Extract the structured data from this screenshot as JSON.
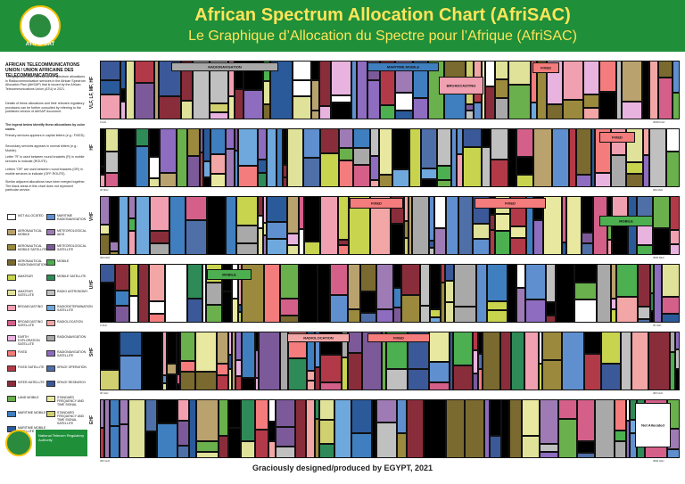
{
  "header": {
    "title_en": "African Spectrum Allocation Chart (AfriSAC)",
    "title_fr": "Le Graphique d’Allocation du Spectre pour l’Afrique (AfriSAC)",
    "logo_text": "ATU ★ UAT"
  },
  "sidebar": {
    "org_name": "AFRICAN TELECOMMUNICATIONS UNION / UNION AFRICAINE DES TELECOMMUNICATIONS",
    "intro": "This graphical chart represents the spectrum allocations in Radiocommunication services in the African Spectrum Allocation Plan (AfriSAP) that is issued by the African Telecommunications Union (ATU) in 2021.",
    "details": "Details of these allocations and their relevant regulatory provisions can be further consulted by referring to the published version of AfriSAP document.",
    "legend_intro": "The legend below identify these allocations by color codes.",
    "bullet_1": "Primary services appears in capital letters (e.g.: FIXED).",
    "bullet_2": "Secondary services appears in normal letters (e.g.: Mobile).",
    "bullet_3": "Letter \"R\" is used between round brackets (R) in mobile services to indicate (ROUTE).",
    "bullet_4": "Letters \"OR\" are used between round brackets (OR) in mobile services to indicate (OFF-ROUTE).",
    "bullet_5": "Similar adjacent allocations have been merged together. The black areas in this chart does not represent particular service."
  },
  "legend": [
    {
      "label": "NOT ALLOCATED",
      "color": "#ffffff"
    },
    {
      "label": "AERONAUTICAL MOBILE",
      "color": "#b9a26e"
    },
    {
      "label": "AERONAUTICAL MOBILE SATELLITE",
      "color": "#9b8a3d"
    },
    {
      "label": "AERONAUTICAL RADIONAVIGATION",
      "color": "#7a6a2f"
    },
    {
      "label": "AMATEUR",
      "color": "#c8d44e"
    },
    {
      "label": "AMATEUR SATELLITE",
      "color": "#e0e29a"
    },
    {
      "label": "BROADCASTING",
      "color": "#f0a0b0"
    },
    {
      "label": "BROADCASTING SATELLITE",
      "color": "#d4608a"
    },
    {
      "label": "EARTH EXPLORATION SATELLITE",
      "color": "#e9b3e0"
    },
    {
      "label": "FIXED",
      "color": "#f47c7c"
    },
    {
      "label": "FIXED SATELLITE",
      "color": "#b23a48"
    },
    {
      "label": "INTER-SATELLITE",
      "color": "#8a2d3b"
    },
    {
      "label": "LAND MOBILE",
      "color": "#6ab04c"
    },
    {
      "label": "MARITIME MOBILE",
      "color": "#3f7fbf"
    },
    {
      "label": "MARITIME MOBILE SATELLITE",
      "color": "#2a5a9a"
    },
    {
      "label": "MARITIME RADIONAVIGATION",
      "color": "#5f8fcf"
    },
    {
      "label": "METEOROLOGICAL AIDS",
      "color": "#9e7bb5"
    },
    {
      "label": "METEOROLOGICAL SATELLITE",
      "color": "#7c5a9a"
    },
    {
      "label": "MOBILE",
      "color": "#4caf50"
    },
    {
      "label": "MOBILE SATELLITE",
      "color": "#2e8b57"
    },
    {
      "label": "RADIO ASTRONOMY",
      "color": "#c0c0c0"
    },
    {
      "label": "RADIODETERMINATION SATELLITE",
      "color": "#6fa8dc"
    },
    {
      "label": "RADIOLOCATION",
      "color": "#f3a6a6"
    },
    {
      "label": "RADIONAVIGATION",
      "color": "#a9a9a9"
    },
    {
      "label": "RADIONAVIGATION SATELLITE",
      "color": "#8e6cc0"
    },
    {
      "label": "SPACE OPERATION",
      "color": "#4f6fa8"
    },
    {
      "label": "SPACE RESEARCH",
      "color": "#3b5998"
    },
    {
      "label": "STANDARD FREQUENCY AND TIME SIGNAL",
      "color": "#e8e8a0"
    },
    {
      "label": "STANDARD FREQUENCY AND TIME SIGNAL SATELLITE",
      "color": "#d0d070"
    }
  ],
  "bands": [
    {
      "id": "vlf-lf-mf-hf",
      "label": "VLF, LF, MF, HF",
      "start": "0 kHz",
      "end": "30000 kHz"
    },
    {
      "id": "hf",
      "label": "HF",
      "start": "30 MHz",
      "end": "300 MHz"
    },
    {
      "id": "vhf",
      "label": "VHF",
      "start": "300 MHz",
      "end": "3000 MHz"
    },
    {
      "id": "uhf",
      "label": "UHF",
      "start": "3 GHz",
      "end": "30 GHz"
    },
    {
      "id": "shf",
      "label": "SHF",
      "start": "30 GHz",
      "end": "300 GHz"
    },
    {
      "id": "ehf",
      "label": "EHF",
      "start": "300 GHz",
      "end": "3000 GHz"
    }
  ],
  "band_texts": {
    "radionavigation": "RADIONAVIGATION",
    "fixed": "FIXED",
    "maritime_mobile": "MARITIME MOBILE",
    "broadcasting": "BROADCASTING",
    "radiolocation": "RADIOLOCATION",
    "mobile": "MOBILE",
    "not_allocated": "Not Allocated"
  },
  "sponsor": {
    "name": "National Telecom Regulatory Authority"
  },
  "footer": {
    "credit": "Graciously designed/produced by EGYPT, 2021"
  }
}
